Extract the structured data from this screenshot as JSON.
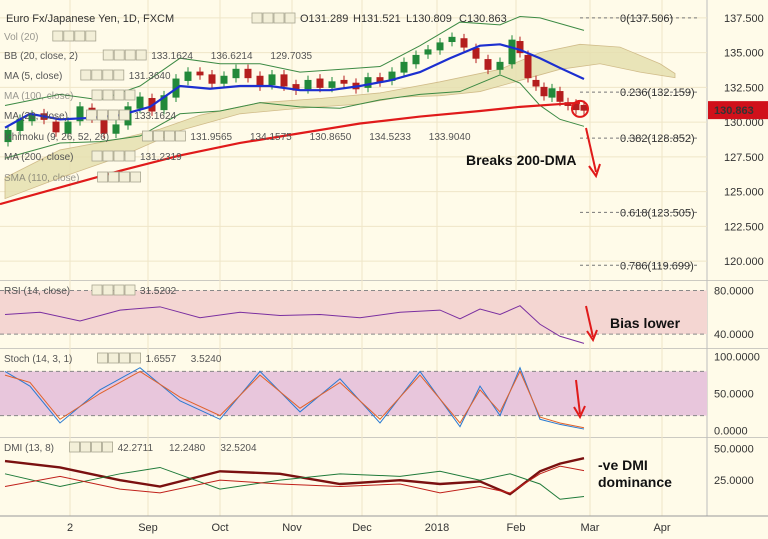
{
  "header": {
    "symbol": "Euro Fx/Japanese Yen, 1D, FXCM",
    "ohlc": [
      "O131.289",
      "H131.521",
      "L130.809",
      "C130.863"
    ]
  },
  "indicators": [
    {
      "name": "Vol (20)",
      "values": []
    },
    {
      "name": "BB (20, close, 2)",
      "values": [
        "133.1624",
        "136.6214",
        "129.7035"
      ],
      "colors": [
        "#1f3fbf",
        "#1f7a3a",
        "#1f7a3a"
      ]
    },
    {
      "name": "MA (5, close)",
      "values": [
        "131.3640"
      ],
      "colors": [
        "#b31d1d"
      ]
    },
    {
      "name": "MA (100, close)",
      "values": [],
      "colors": []
    },
    {
      "name": "MA (20, close)",
      "values": [
        "133.1624"
      ],
      "colors": [
        "#1f3fbf"
      ]
    },
    {
      "name": "Ichimoku (9, 26, 52, 26)",
      "values": [
        "131.9565",
        "134.1575",
        "130.8650",
        "134.5233",
        "133.9040"
      ],
      "colors": [
        "#1f3fbf",
        "#b31d1d",
        "#1f7a3a",
        "#1f7a3a",
        "#b31d1d"
      ]
    },
    {
      "name": "MA (200, close)",
      "values": [
        "131.2319"
      ],
      "colors": [
        "#b31d1d"
      ]
    },
    {
      "name": "SMA (110, close)",
      "values": [],
      "colors": []
    }
  ],
  "fib_levels": [
    {
      "label": "0(137.506)",
      "value": 137.506
    },
    {
      "label": "0.236(132.159)",
      "value": 132.159
    },
    {
      "label": "0.382(128.852)",
      "value": 128.852
    },
    {
      "label": "0.618(123.505)",
      "value": 123.505
    },
    {
      "label": "0.786(119.699)",
      "value": 119.699
    }
  ],
  "price_badge": "130.863",
  "annotations": {
    "main": "Breaks 200-DMA",
    "rsi": "Bias lower",
    "dmi": [
      "-ve DMI",
      "dominance"
    ]
  },
  "subpanels": {
    "rsi": {
      "title": "RSI (14, close)",
      "values": [
        "31.5202"
      ],
      "colors": [
        "#7a2fa0"
      ]
    },
    "stoch": {
      "title": "Stoch (14, 3, 1)",
      "values": [
        "1.6557",
        "3.5240"
      ],
      "colors": [
        "#2a7ad1",
        "#e0622b"
      ]
    },
    "dmi": {
      "title": "DMI (13, 8)",
      "values": [
        "42.2711",
        "12.2480",
        "32.5204"
      ],
      "colors": [
        "#7a1010",
        "#1f7a3a",
        "#c0201a"
      ]
    }
  },
  "colors": {
    "background": "#fffbe9",
    "ma200": "#e01a1a",
    "ma20": "#1c2fd0",
    "cloud": "#e6e0b0",
    "up_candle": "#22893a",
    "down_candle": "#b41e1e",
    "badge": "#d0101a",
    "arrow": "#e01a1a",
    "rsi_band": "#f4d6d2",
    "stoch_band": "#e8c6dc"
  },
  "chart_data": [
    {
      "type": "candlestick",
      "title": "Euro Fx/Japanese Yen, 1D, FXCM",
      "ylim": [
        119.0,
        138.5
      ],
      "yticks": [
        "137.500",
        "135.000",
        "132.500",
        "130.000",
        "127.500",
        "125.000",
        "122.500",
        "120.000"
      ],
      "ytick_values": [
        137.5,
        135.0,
        132.5,
        130.0,
        127.5,
        125.0,
        122.5,
        120.0
      ],
      "xtick_labels": [
        "2",
        "Sep",
        "Oct",
        "Nov",
        "Dec",
        "2018",
        "Feb",
        "Mar",
        "Apr"
      ],
      "series": [
        {
          "name": "MA (200, close)",
          "points": [
            [
              0,
              124.1
            ],
            [
              60,
              125.3
            ],
            [
              120,
              126.5
            ],
            [
              180,
              127.6
            ],
            [
              240,
              128.5
            ],
            [
              300,
              129.2
            ],
            [
              360,
              129.9
            ],
            [
              420,
              130.4
            ],
            [
              480,
              130.8
            ],
            [
              520,
              131.1
            ],
            [
              560,
              131.3
            ],
            [
              580,
              131.4
            ]
          ]
        },
        {
          "name": "MA (20, close)",
          "points": [
            [
              5,
              129.6
            ],
            [
              30,
              130.6
            ],
            [
              60,
              130.2
            ],
            [
              90,
              130.3
            ],
            [
              120,
              130.5
            ],
            [
              150,
              131.1
            ],
            [
              180,
              132.6
            ],
            [
              210,
              132.4
            ],
            [
              240,
              132.6
            ],
            [
              270,
              132.6
            ],
            [
              300,
              132.3
            ],
            [
              330,
              132.3
            ],
            [
              360,
              132.6
            ],
            [
              390,
              133.0
            ],
            [
              420,
              133.6
            ],
            [
              450,
              134.6
            ],
            [
              480,
              135.5
            ],
            [
              500,
              135.6
            ],
            [
              520,
              135.2
            ],
            [
              540,
              134.6
            ],
            [
              560,
              133.9
            ],
            [
              584,
              133.1
            ]
          ]
        }
      ],
      "candles": [
        [
          8,
          128.6,
          129.4
        ],
        [
          20,
          129.4,
          130.2
        ],
        [
          32,
          130.1,
          130.5
        ],
        [
          44,
          130.6,
          130.2
        ],
        [
          56,
          130.0,
          129.3
        ],
        [
          68,
          129.2,
          130.0
        ],
        [
          80,
          130.1,
          131.1
        ],
        [
          92,
          131.0,
          130.3
        ],
        [
          104,
          130.3,
          129.2
        ],
        [
          116,
          129.2,
          129.8
        ],
        [
          128,
          129.8,
          131.1
        ],
        [
          140,
          131.0,
          131.8
        ],
        [
          152,
          131.7,
          130.8
        ],
        [
          164,
          130.9,
          131.9
        ],
        [
          176,
          131.8,
          133.1
        ],
        [
          188,
          133.0,
          133.6
        ],
        [
          200,
          133.6,
          133.4
        ],
        [
          212,
          133.4,
          132.8
        ],
        [
          224,
          132.8,
          133.3
        ],
        [
          236,
          133.2,
          133.8
        ],
        [
          248,
          133.8,
          133.2
        ],
        [
          260,
          133.3,
          132.6
        ],
        [
          272,
          132.7,
          133.4
        ],
        [
          284,
          133.4,
          132.6
        ],
        [
          296,
          132.7,
          132.3
        ],
        [
          308,
          132.4,
          133.0
        ],
        [
          320,
          133.1,
          132.5
        ],
        [
          332,
          132.5,
          132.9
        ],
        [
          344,
          133.0,
          132.8
        ],
        [
          356,
          132.8,
          132.4
        ],
        [
          368,
          132.5,
          133.2
        ],
        [
          380,
          133.2,
          132.9
        ],
        [
          392,
          133.0,
          133.6
        ],
        [
          404,
          133.6,
          134.3
        ],
        [
          416,
          134.2,
          134.8
        ],
        [
          428,
          134.9,
          135.2
        ],
        [
          440,
          135.2,
          135.7
        ],
        [
          452,
          135.8,
          136.1
        ],
        [
          464,
          136.0,
          135.4
        ],
        [
          476,
          135.3,
          134.6
        ],
        [
          488,
          134.5,
          133.8
        ],
        [
          500,
          133.8,
          134.3
        ],
        [
          512,
          134.2,
          135.9
        ],
        [
          520,
          135.8,
          135.0
        ],
        [
          528,
          134.8,
          133.2
        ],
        [
          536,
          133.0,
          132.6
        ],
        [
          544,
          132.5,
          131.9
        ],
        [
          552,
          131.8,
          132.4
        ],
        [
          560,
          132.2,
          131.5
        ],
        [
          568,
          131.4,
          131.2
        ],
        [
          576,
          131.3,
          130.9
        ],
        [
          584,
          131.2,
          130.86
        ]
      ]
    },
    {
      "type": "line",
      "title": "RSI (14, close)",
      "ylim": [
        30,
        85
      ],
      "yticks": [
        "80.0000",
        "40.0000"
      ],
      "ytick_values": [
        80,
        40
      ],
      "series": [
        {
          "name": "RSI (14, close)",
          "points": [
            [
              5,
              58
            ],
            [
              40,
              60
            ],
            [
              80,
              52
            ],
            [
              120,
              62
            ],
            [
              160,
              65
            ],
            [
              200,
              55
            ],
            [
              240,
              60
            ],
            [
              280,
              57
            ],
            [
              320,
              58
            ],
            [
              360,
              55
            ],
            [
              400,
              60
            ],
            [
              440,
              62
            ],
            [
              460,
              54
            ],
            [
              480,
              63
            ],
            [
              500,
              58
            ],
            [
              520,
              66
            ],
            [
              540,
              49
            ],
            [
              560,
              38
            ],
            [
              584,
              31.5
            ]
          ]
        }
      ]
    },
    {
      "type": "line",
      "title": "Stoch (14, 3, 1)",
      "ylim": [
        -5,
        105
      ],
      "yticks": [
        "100.0000",
        "50.0000",
        "0.0000"
      ],
      "ytick_values": [
        100,
        50,
        0
      ],
      "series": [
        {
          "name": "%K",
          "points": [
            [
              5,
              80
            ],
            [
              30,
              60
            ],
            [
              60,
              10
            ],
            [
              100,
              55
            ],
            [
              140,
              85
            ],
            [
              180,
              40
            ],
            [
              220,
              15
            ],
            [
              260,
              80
            ],
            [
              300,
              25
            ],
            [
              340,
              70
            ],
            [
              380,
              10
            ],
            [
              420,
              80
            ],
            [
              460,
              5
            ],
            [
              480,
              60
            ],
            [
              500,
              20
            ],
            [
              520,
              85
            ],
            [
              540,
              15
            ],
            [
              560,
              8
            ],
            [
              584,
              1.7
            ]
          ]
        },
        {
          "name": "%D",
          "points": [
            [
              5,
              75
            ],
            [
              30,
              65
            ],
            [
              60,
              15
            ],
            [
              100,
              50
            ],
            [
              140,
              80
            ],
            [
              180,
              45
            ],
            [
              220,
              20
            ],
            [
              260,
              75
            ],
            [
              300,
              30
            ],
            [
              340,
              65
            ],
            [
              380,
              15
            ],
            [
              420,
              75
            ],
            [
              460,
              10
            ],
            [
              480,
              55
            ],
            [
              500,
              25
            ],
            [
              520,
              80
            ],
            [
              540,
              18
            ],
            [
              560,
              10
            ],
            [
              584,
              3.5
            ]
          ]
        }
      ]
    },
    {
      "type": "line",
      "title": "DMI (13, 8)",
      "ylim": [
        0,
        55
      ],
      "yticks": [
        "50.0000",
        "25.0000"
      ],
      "ytick_values": [
        50,
        25
      ],
      "series": [
        {
          "name": "ADX",
          "points": [
            [
              5,
              40
            ],
            [
              60,
              35
            ],
            [
              120,
              25
            ],
            [
              160,
              20
            ],
            [
              220,
              32
            ],
            [
              280,
              30
            ],
            [
              340,
              22
            ],
            [
              400,
              25
            ],
            [
              440,
              22
            ],
            [
              480,
              24
            ],
            [
              510,
              14
            ],
            [
              540,
              32
            ],
            [
              560,
              38
            ],
            [
              584,
              42.3
            ]
          ]
        },
        {
          "name": "+DI",
          "points": [
            [
              5,
              30
            ],
            [
              60,
              20
            ],
            [
              120,
              30
            ],
            [
              160,
              35
            ],
            [
              220,
              18
            ],
            [
              280,
              25
            ],
            [
              340,
              30
            ],
            [
              400,
              28
            ],
            [
              440,
              32
            ],
            [
              480,
              25
            ],
            [
              510,
              30
            ],
            [
              540,
              22
            ],
            [
              560,
              10
            ],
            [
              584,
              12.2
            ]
          ]
        },
        {
          "name": "-DI",
          "points": [
            [
              5,
              20
            ],
            [
              60,
              28
            ],
            [
              120,
              18
            ],
            [
              160,
              15
            ],
            [
              220,
              25
            ],
            [
              280,
              22
            ],
            [
              340,
              20
            ],
            [
              400,
              22
            ],
            [
              440,
              15
            ],
            [
              480,
              20
            ],
            [
              510,
              15
            ],
            [
              540,
              30
            ],
            [
              560,
              36
            ],
            [
              584,
              32.5
            ]
          ]
        }
      ]
    }
  ]
}
